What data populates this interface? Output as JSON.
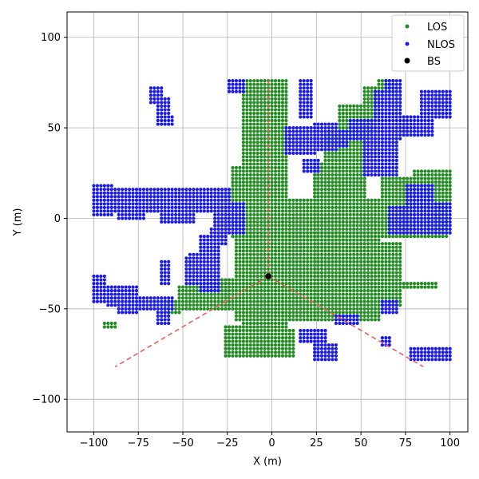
{
  "chart_data": {
    "type": "scatter",
    "xlabel": "X (m)",
    "ylabel": "Y (m)",
    "xlim": [
      -115,
      110
    ],
    "ylim": [
      -118,
      114
    ],
    "xticks": [
      -100,
      -75,
      -50,
      -25,
      0,
      25,
      50,
      75,
      100
    ],
    "yticks": [
      -100,
      -50,
      0,
      50,
      100
    ],
    "xtick_labels": [
      "−100",
      "−75",
      "−50",
      "−25",
      "0",
      "25",
      "50",
      "75",
      "100"
    ],
    "ytick_labels": [
      "−100",
      "−50",
      "0",
      "50",
      "100"
    ],
    "grid": true,
    "legend_position": "top-right",
    "grid_step": 2,
    "series": [
      {
        "name": "LOS",
        "color": "#228b22",
        "regions": [
          {
            "x": [
              -16,
              8
            ],
            "y": [
              -76,
              76
            ]
          },
          {
            "x": [
              -26,
              8
            ],
            "y": [
              -76,
              -60
            ]
          },
          {
            "x": [
              -4,
              12
            ],
            "y": [
              -76,
              -62
            ]
          },
          {
            "x": [
              -20,
              60
            ],
            "y": [
              -56,
              10
            ]
          },
          {
            "x": [
              -38,
              -2
            ],
            "y": [
              -50,
              -34
            ]
          },
          {
            "x": [
              -52,
              -20
            ],
            "y": [
              -50,
              -38
            ]
          },
          {
            "x": [
              -22,
              98
            ],
            "y": [
              -10,
              10
            ]
          },
          {
            "x": [
              -22,
              -2
            ],
            "y": [
              -4,
              28
            ]
          },
          {
            "x": [
              0,
              52
            ],
            "y": [
              -34,
              10
            ]
          },
          {
            "x": [
              24,
              32
            ],
            "y": [
              10,
              30
            ]
          },
          {
            "x": [
              30,
              52
            ],
            "y": [
              10,
              46
            ]
          },
          {
            "x": [
              38,
              56
            ],
            "y": [
              46,
              62
            ]
          },
          {
            "x": [
              52,
              60
            ],
            "y": [
              56,
              72
            ]
          },
          {
            "x": [
              60,
              68
            ],
            "y": [
              70,
              76
            ]
          },
          {
            "x": [
              62,
              72
            ],
            "y": [
              -10,
              22
            ]
          },
          {
            "x": [
              72,
              98
            ],
            "y": [
              -6,
              22
            ]
          },
          {
            "x": [
              80,
              100
            ],
            "y": [
              10,
              26
            ]
          },
          {
            "x": [
              52,
              72
            ],
            "y": [
              -48,
              -14
            ]
          },
          {
            "x": [
              72,
              92
            ],
            "y": [
              -38,
              -36
            ]
          },
          {
            "x": [
              -94,
              -88
            ],
            "y": [
              -60,
              -58
            ]
          },
          {
            "x": [
              -60,
              -52
            ],
            "y": [
              -52,
              -46
            ]
          }
        ]
      },
      {
        "name": "NLOS",
        "color": "#1a1ae6",
        "regions": [
          {
            "x": [
              -100,
              -24
            ],
            "y": [
              4,
              16
            ]
          },
          {
            "x": [
              -100,
              -90
            ],
            "y": [
              2,
              18
            ]
          },
          {
            "x": [
              -86,
              -72
            ],
            "y": [
              0,
              14
            ]
          },
          {
            "x": [
              -62,
              -44
            ],
            "y": [
              -2,
              16
            ]
          },
          {
            "x": [
              -32,
              -16
            ],
            "y": [
              -8,
              8
            ]
          },
          {
            "x": [
              -40,
              -30
            ],
            "y": [
              -40,
              -10
            ]
          },
          {
            "x": [
              -34,
              -26
            ],
            "y": [
              -14,
              -6
            ]
          },
          {
            "x": [
              -48,
              -34
            ],
            "y": [
              -36,
              -22
            ]
          },
          {
            "x": [
              -46,
              -40
            ],
            "y": [
              -32,
              -20
            ]
          },
          {
            "x": [
              -76,
              -56
            ],
            "y": [
              -50,
              -44
            ]
          },
          {
            "x": [
              -92,
              -82
            ],
            "y": [
              -48,
              -38
            ]
          },
          {
            "x": [
              -86,
              -76
            ],
            "y": [
              -52,
              -38
            ]
          },
          {
            "x": [
              -100,
              -94
            ],
            "y": [
              -46,
              -32
            ]
          },
          {
            "x": [
              -62,
              -58
            ],
            "y": [
              -36,
              -24
            ]
          },
          {
            "x": [
              -64,
              -58
            ],
            "y": [
              -58,
              -48
            ]
          },
          {
            "x": [
              -64,
              -58
            ],
            "y": [
              52,
              66
            ]
          },
          {
            "x": [
              -68,
              -62
            ],
            "y": [
              64,
              72
            ]
          },
          {
            "x": [
              -58,
              -56
            ],
            "y": [
              52,
              56
            ]
          },
          {
            "x": [
              -24,
              -16
            ],
            "y": [
              70,
              76
            ]
          },
          {
            "x": [
              16,
              22
            ],
            "y": [
              56,
              76
            ]
          },
          {
            "x": [
              8,
              24
            ],
            "y": [
              36,
              50
            ]
          },
          {
            "x": [
              24,
              36
            ],
            "y": [
              38,
              52
            ]
          },
          {
            "x": [
              28,
              42
            ],
            "y": [
              40,
              48
            ]
          },
          {
            "x": [
              18,
              26
            ],
            "y": [
              26,
              32
            ]
          },
          {
            "x": [
              44,
              56
            ],
            "y": [
              44,
              54
            ]
          },
          {
            "x": [
              52,
              70
            ],
            "y": [
              24,
              52
            ]
          },
          {
            "x": [
              58,
              72
            ],
            "y": [
              44,
              70
            ]
          },
          {
            "x": [
              64,
              72
            ],
            "y": [
              64,
              76
            ]
          },
          {
            "x": [
              70,
              90
            ],
            "y": [
              46,
              56
            ]
          },
          {
            "x": [
              84,
              100
            ],
            "y": [
              56,
              70
            ]
          },
          {
            "x": [
              76,
              90
            ],
            "y": [
              6,
              18
            ]
          },
          {
            "x": [
              66,
              100
            ],
            "y": [
              -8,
              6
            ]
          },
          {
            "x": [
              88,
              100
            ],
            "y": [
              0,
              8
            ]
          },
          {
            "x": [
              16,
              30
            ],
            "y": [
              -68,
              -62
            ]
          },
          {
            "x": [
              24,
              36
            ],
            "y": [
              -78,
              -70
            ]
          },
          {
            "x": [
              36,
              48
            ],
            "y": [
              -58,
              -54
            ]
          },
          {
            "x": [
              62,
              66
            ],
            "y": [
              -70,
              -66
            ]
          },
          {
            "x": [
              62,
              70
            ],
            "y": [
              -52,
              -46
            ]
          },
          {
            "x": [
              78,
              100
            ],
            "y": [
              -78,
              -72
            ]
          },
          {
            "x": [
              86,
              100
            ],
            "y": [
              -78,
              -74
            ]
          }
        ]
      },
      {
        "name": "BS",
        "color": "#000000",
        "points": [
          [
            -2,
            -32
          ]
        ]
      }
    ],
    "sector_lines": [
      {
        "from": [
          -2,
          -32
        ],
        "to": [
          -88,
          -82
        ]
      },
      {
        "from": [
          -2,
          -32
        ],
        "to": [
          85,
          -82
        ]
      },
      {
        "from": [
          -2,
          -32
        ],
        "to": [
          -2,
          78
        ]
      }
    ],
    "sector_line_color": "#e8605a"
  }
}
